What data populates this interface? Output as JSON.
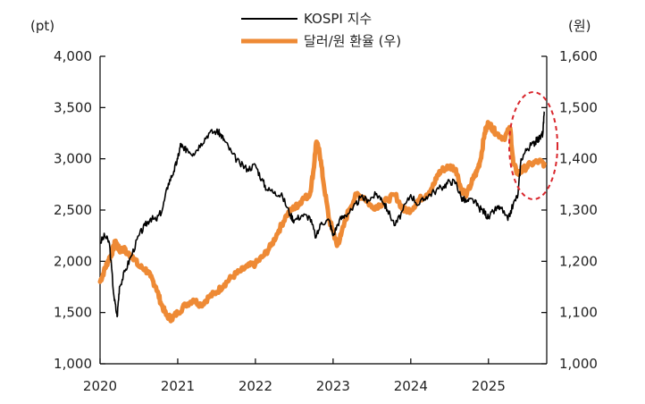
{
  "chart_data": {
    "type": "line",
    "title": "",
    "left_axis_unit": "(pt)",
    "right_axis_unit": "(원)",
    "x_tick_labels": [
      "2020",
      "2021",
      "2022",
      "2023",
      "2024",
      "2025"
    ],
    "xlim": [
      2020.0,
      2025.75
    ],
    "left_ylim": [
      1000,
      4000
    ],
    "right_ylim": [
      1000,
      1600
    ],
    "left_tick_labels": [
      "4,000",
      "3,500",
      "3,000",
      "2,500",
      "2,000",
      "1,500",
      "1,000"
    ],
    "right_tick_labels": [
      "1,600",
      "1,500",
      "1,400",
      "1,300",
      "1,200",
      "1,100",
      "1,000"
    ],
    "colors": {
      "kospi": "#000000",
      "fx": "#ee8a35",
      "highlight": "#d9262c"
    },
    "series": [
      {
        "name": "KOSPI 지수",
        "axis": "left",
        "x": [
          2020.0,
          2020.06,
          2020.12,
          2020.18,
          2020.22,
          2020.25,
          2020.32,
          2020.4,
          2020.5,
          2020.58,
          2020.65,
          2020.72,
          2020.8,
          2020.88,
          2020.95,
          2021.0,
          2021.04,
          2021.08,
          2021.12,
          2021.2,
          2021.3,
          2021.4,
          2021.5,
          2021.55,
          2021.6,
          2021.7,
          2021.8,
          2021.9,
          2022.0,
          2022.08,
          2022.15,
          2022.25,
          2022.35,
          2022.45,
          2022.5,
          2022.6,
          2022.7,
          2022.78,
          2022.85,
          2022.95,
          2023.0,
          2023.08,
          2023.15,
          2023.25,
          2023.35,
          2023.45,
          2023.55,
          2023.62,
          2023.7,
          2023.8,
          2023.9,
          2024.0,
          2024.1,
          2024.2,
          2024.3,
          2024.42,
          2024.5,
          2024.58,
          2024.65,
          2024.72,
          2024.8,
          2024.88,
          2024.95,
          2025.0,
          2025.08,
          2025.15,
          2025.25,
          2025.32,
          2025.38,
          2025.42,
          2025.5,
          2025.58,
          2025.62,
          2025.66,
          2025.7,
          2025.72
        ],
        "values": [
          2180,
          2250,
          2180,
          1650,
          1460,
          1750,
          1900,
          2050,
          2250,
          2350,
          2420,
          2400,
          2500,
          2760,
          2880,
          3000,
          3150,
          3080,
          3100,
          3050,
          3150,
          3250,
          3270,
          3240,
          3180,
          3050,
          2950,
          2900,
          2940,
          2800,
          2700,
          2680,
          2630,
          2450,
          2400,
          2450,
          2430,
          2230,
          2380,
          2400,
          2250,
          2400,
          2450,
          2500,
          2620,
          2600,
          2650,
          2620,
          2500,
          2350,
          2500,
          2650,
          2550,
          2630,
          2680,
          2730,
          2780,
          2770,
          2620,
          2580,
          2600,
          2520,
          2480,
          2420,
          2500,
          2530,
          2400,
          2560,
          2650,
          3000,
          3100,
          3150,
          3180,
          3200,
          3250,
          3460
        ]
      },
      {
        "name": "달러/원 환율 (우)",
        "axis": "right",
        "x": [
          2020.0,
          2020.05,
          2020.1,
          2020.15,
          2020.2,
          2020.25,
          2020.3,
          2020.35,
          2020.42,
          2020.5,
          2020.58,
          2020.65,
          2020.72,
          2020.78,
          2020.85,
          2020.92,
          2021.0,
          2021.1,
          2021.2,
          2021.3,
          2021.4,
          2021.5,
          2021.6,
          2021.7,
          2021.8,
          2021.9,
          2022.0,
          2022.1,
          2022.2,
          2022.3,
          2022.4,
          2022.5,
          2022.55,
          2022.6,
          2022.7,
          2022.75,
          2022.78,
          2022.82,
          2022.88,
          2022.95,
          2023.0,
          2023.05,
          2023.1,
          2023.2,
          2023.3,
          2023.4,
          2023.5,
          2023.6,
          2023.7,
          2023.8,
          2023.9,
          2024.0,
          2024.1,
          2024.2,
          2024.3,
          2024.35,
          2024.42,
          2024.5,
          2024.58,
          2024.65,
          2024.72,
          2024.8,
          2024.85,
          2024.9,
          2024.95,
          2025.0,
          2025.05,
          2025.1,
          2025.2,
          2025.28,
          2025.32,
          2025.38,
          2025.45,
          2025.55,
          2025.65,
          2025.72
        ],
        "values": [
          1160,
          1180,
          1200,
          1215,
          1240,
          1220,
          1225,
          1215,
          1210,
          1190,
          1185,
          1170,
          1150,
          1120,
          1095,
          1088,
          1100,
          1115,
          1125,
          1115,
          1130,
          1140,
          1155,
          1170,
          1180,
          1190,
          1195,
          1210,
          1230,
          1260,
          1290,
          1305,
          1310,
          1320,
          1330,
          1380,
          1430,
          1420,
          1350,
          1280,
          1260,
          1230,
          1250,
          1300,
          1330,
          1325,
          1305,
          1310,
          1320,
          1330,
          1300,
          1300,
          1320,
          1330,
          1350,
          1370,
          1380,
          1385,
          1380,
          1340,
          1330,
          1360,
          1375,
          1400,
          1450,
          1470,
          1460,
          1450,
          1440,
          1460,
          1390,
          1370,
          1380,
          1390,
          1395,
          1390
        ]
      }
    ],
    "annotation": {
      "type": "dashed-ellipse",
      "note": "recent divergence highlight"
    }
  }
}
